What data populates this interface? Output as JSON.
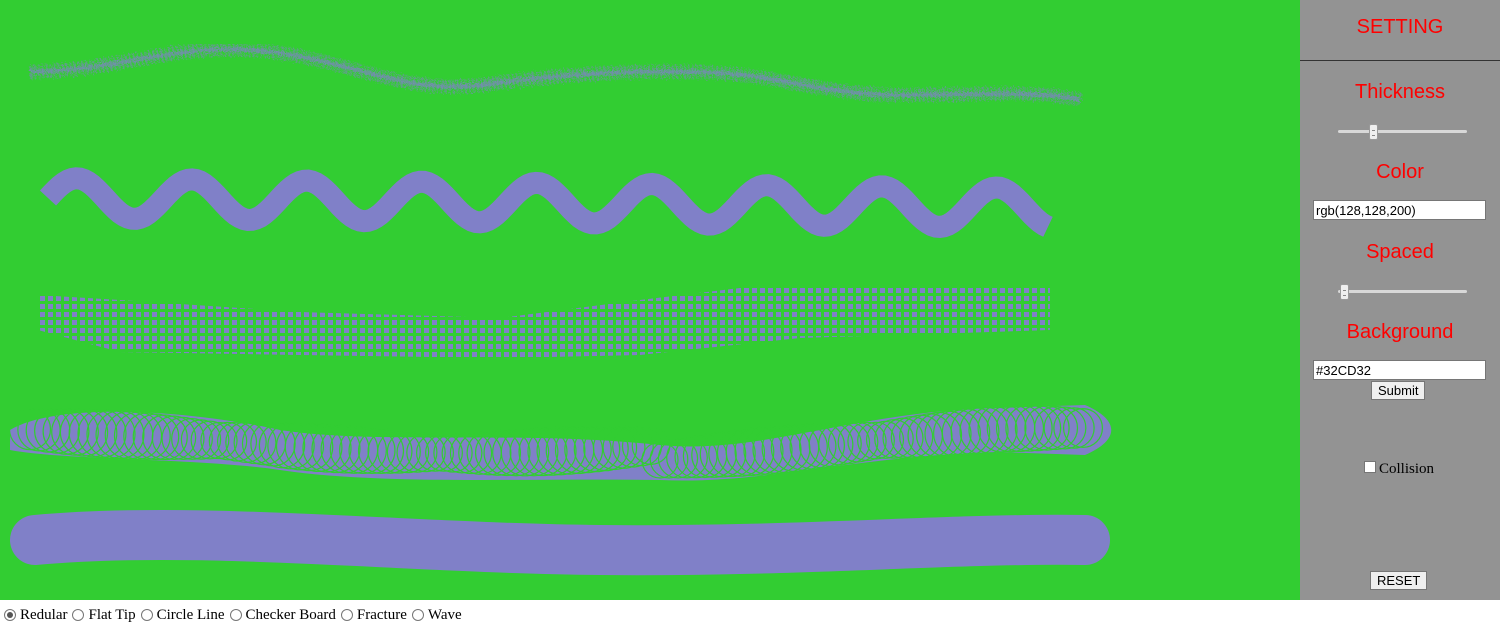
{
  "canvas": {
    "background": "#32CD32",
    "stroke_color": "#8080C8"
  },
  "settings": {
    "title": "SETTING",
    "thickness": {
      "label": "Thickness",
      "value": 0.26
    },
    "color": {
      "label": "Color",
      "value": "rgb(128,128,200)"
    },
    "spaced": {
      "label": "Spaced",
      "value": 0.02
    },
    "background": {
      "label": "Background",
      "value": "#32CD32"
    },
    "submit_label": "Submit",
    "collision_label": "Collision",
    "collision_checked": false,
    "reset_label": "RESET"
  },
  "brushes": [
    {
      "label": "Redular",
      "selected": true
    },
    {
      "label": "Flat Tip",
      "selected": false
    },
    {
      "label": "Circle Line",
      "selected": false
    },
    {
      "label": "Checker Board",
      "selected": false
    },
    {
      "label": "Fracture",
      "selected": false
    },
    {
      "label": "Wave",
      "selected": false
    }
  ]
}
